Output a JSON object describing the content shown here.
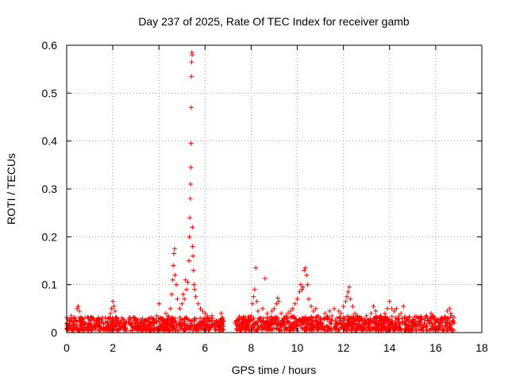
{
  "chart_data": {
    "type": "scatter",
    "title": "Day 237 of 2025, Rate Of TEC Index for receiver gamb",
    "xlabel": "GPS time / hours",
    "ylabel": "ROTI / TECUs",
    "xlim": [
      0,
      18
    ],
    "ylim": [
      0,
      0.6
    ],
    "xticks": [
      "0",
      "2",
      "4",
      "6",
      "8",
      "10",
      "12",
      "14",
      "16",
      "18"
    ],
    "yticks": [
      "0",
      "0.1",
      "0.2",
      "0.3",
      "0.4",
      "0.5",
      "0.6"
    ],
    "grid": true,
    "marker": "+",
    "color": "#ff0000",
    "series": [
      {
        "points": [
          [
            0.05,
            0.028
          ],
          [
            0.12,
            0.015
          ],
          [
            0.2,
            0.035
          ],
          [
            0.3,
            0.022
          ],
          [
            0.4,
            0.012
          ],
          [
            0.45,
            0.05
          ],
          [
            0.5,
            0.055
          ],
          [
            0.55,
            0.045
          ],
          [
            0.6,
            0.03
          ],
          [
            0.7,
            0.02
          ],
          [
            0.8,
            0.018
          ],
          [
            0.9,
            0.032
          ],
          [
            1.0,
            0.025
          ],
          [
            1.1,
            0.014
          ],
          [
            1.2,
            0.028
          ],
          [
            1.3,
            0.02
          ],
          [
            1.4,
            0.016
          ],
          [
            1.5,
            0.026
          ],
          [
            1.6,
            0.018
          ],
          [
            1.7,
            0.022
          ],
          [
            1.8,
            0.03
          ],
          [
            1.9,
            0.04
          ],
          [
            1.95,
            0.05
          ],
          [
            2.0,
            0.065
          ],
          [
            2.05,
            0.055
          ],
          [
            2.1,
            0.045
          ],
          [
            2.2,
            0.03
          ],
          [
            2.3,
            0.02
          ],
          [
            2.5,
            0.018
          ],
          [
            2.6,
            0.022
          ],
          [
            2.8,
            0.016
          ],
          [
            3.0,
            0.02
          ],
          [
            3.2,
            0.015
          ],
          [
            3.4,
            0.022
          ],
          [
            3.6,
            0.018
          ],
          [
            3.8,
            0.025
          ],
          [
            3.9,
            0.035
          ],
          [
            4.0,
            0.06
          ],
          [
            4.1,
            0.03
          ],
          [
            4.2,
            0.025
          ],
          [
            4.3,
            0.04
          ],
          [
            4.4,
            0.035
          ],
          [
            4.5,
            0.05
          ],
          [
            4.55,
            0.08
          ],
          [
            4.6,
            0.11
          ],
          [
            4.62,
            0.14
          ],
          [
            4.65,
            0.165
          ],
          [
            4.68,
            0.175
          ],
          [
            4.7,
            0.12
          ],
          [
            4.75,
            0.1
          ],
          [
            4.8,
            0.07
          ],
          [
            4.9,
            0.05
          ],
          [
            5.0,
            0.06
          ],
          [
            5.05,
            0.08
          ],
          [
            5.1,
            0.07
          ],
          [
            5.15,
            0.11
          ],
          [
            5.2,
            0.09
          ],
          [
            5.25,
            0.105
          ],
          [
            5.3,
            0.15
          ],
          [
            5.32,
            0.2
          ],
          [
            5.34,
            0.24
          ],
          [
            5.36,
            0.28
          ],
          [
            5.37,
            0.31
          ],
          [
            5.38,
            0.345
          ],
          [
            5.39,
            0.395
          ],
          [
            5.4,
            0.47
          ],
          [
            5.41,
            0.535
          ],
          [
            5.42,
            0.565
          ],
          [
            5.43,
            0.585
          ],
          [
            5.44,
            0.58
          ],
          [
            5.45,
            0.22
          ],
          [
            5.46,
            0.18
          ],
          [
            5.48,
            0.16
          ],
          [
            5.5,
            0.13
          ],
          [
            5.52,
            0.1
          ],
          [
            5.55,
            0.09
          ],
          [
            5.6,
            0.075
          ],
          [
            5.7,
            0.06
          ],
          [
            5.8,
            0.05
          ],
          [
            5.9,
            0.045
          ],
          [
            6.0,
            0.04
          ],
          [
            6.1,
            0.035
          ],
          [
            6.2,
            0.03
          ],
          [
            6.3,
            0.035
          ],
          [
            6.4,
            0.025
          ],
          [
            6.5,
            0.02
          ],
          [
            6.6,
            0.025
          ],
          [
            6.7,
            0.04
          ],
          [
            6.75,
            0.03
          ],
          [
            7.3,
            0.02
          ],
          [
            7.5,
            0.018
          ],
          [
            7.7,
            0.015
          ],
          [
            7.9,
            0.022
          ],
          [
            8.0,
            0.035
          ],
          [
            8.05,
            0.06
          ],
          [
            8.1,
            0.075
          ],
          [
            8.15,
            0.09
          ],
          [
            8.2,
            0.135
          ],
          [
            8.25,
            0.065
          ],
          [
            8.3,
            0.045
          ],
          [
            8.4,
            0.03
          ],
          [
            8.5,
            0.05
          ],
          [
            8.6,
            0.113
          ],
          [
            8.7,
            0.04
          ],
          [
            8.8,
            0.03
          ],
          [
            8.9,
            0.045
          ],
          [
            9.0,
            0.05
          ],
          [
            9.1,
            0.06
          ],
          [
            9.15,
            0.072
          ],
          [
            9.2,
            0.065
          ],
          [
            9.3,
            0.04
          ],
          [
            9.4,
            0.03
          ],
          [
            9.5,
            0.035
          ],
          [
            9.6,
            0.04
          ],
          [
            9.7,
            0.045
          ],
          [
            9.8,
            0.05
          ],
          [
            9.9,
            0.06
          ],
          [
            10.0,
            0.07
          ],
          [
            10.1,
            0.085
          ],
          [
            10.15,
            0.1
          ],
          [
            10.2,
            0.09
          ],
          [
            10.25,
            0.095
          ],
          [
            10.3,
            0.13
          ],
          [
            10.35,
            0.135
          ],
          [
            10.4,
            0.12
          ],
          [
            10.45,
            0.1
          ],
          [
            10.5,
            0.07
          ],
          [
            10.6,
            0.055
          ],
          [
            10.7,
            0.045
          ],
          [
            10.8,
            0.05
          ],
          [
            10.9,
            0.035
          ],
          [
            11.0,
            0.03
          ],
          [
            11.2,
            0.04
          ],
          [
            11.4,
            0.045
          ],
          [
            11.5,
            0.035
          ],
          [
            11.6,
            0.05
          ],
          [
            11.8,
            0.045
          ],
          [
            11.9,
            0.04
          ],
          [
            12.0,
            0.055
          ],
          [
            12.1,
            0.065
          ],
          [
            12.15,
            0.075
          ],
          [
            12.2,
            0.085
          ],
          [
            12.25,
            0.095
          ],
          [
            12.3,
            0.07
          ],
          [
            12.4,
            0.055
          ],
          [
            12.5,
            0.04
          ],
          [
            12.6,
            0.035
          ],
          [
            12.8,
            0.03
          ],
          [
            13.0,
            0.035
          ],
          [
            13.2,
            0.04
          ],
          [
            13.3,
            0.055
          ],
          [
            13.4,
            0.045
          ],
          [
            13.6,
            0.035
          ],
          [
            13.8,
            0.04
          ],
          [
            13.9,
            0.05
          ],
          [
            14.0,
            0.065
          ],
          [
            14.1,
            0.05
          ],
          [
            14.2,
            0.045
          ],
          [
            14.3,
            0.05
          ],
          [
            14.4,
            0.035
          ],
          [
            14.5,
            0.04
          ],
          [
            14.6,
            0.055
          ],
          [
            14.8,
            0.03
          ],
          [
            15.0,
            0.025
          ],
          [
            15.2,
            0.03
          ],
          [
            15.4,
            0.028
          ],
          [
            15.6,
            0.035
          ],
          [
            15.8,
            0.04
          ],
          [
            15.9,
            0.035
          ],
          [
            16.0,
            0.025
          ],
          [
            16.2,
            0.02
          ],
          [
            16.4,
            0.03
          ],
          [
            16.5,
            0.045
          ],
          [
            16.6,
            0.05
          ],
          [
            16.65,
            0.04
          ],
          [
            16.7,
            0.035
          ],
          [
            16.75,
            0.025
          ],
          [
            16.8,
            0.02
          ]
        ]
      }
    ],
    "baseline_segments": [
      {
        "x0": 0.0,
        "x1": 6.8,
        "ymax": 0.028
      },
      {
        "x0": 7.3,
        "x1": 16.8,
        "ymax": 0.03
      }
    ]
  }
}
